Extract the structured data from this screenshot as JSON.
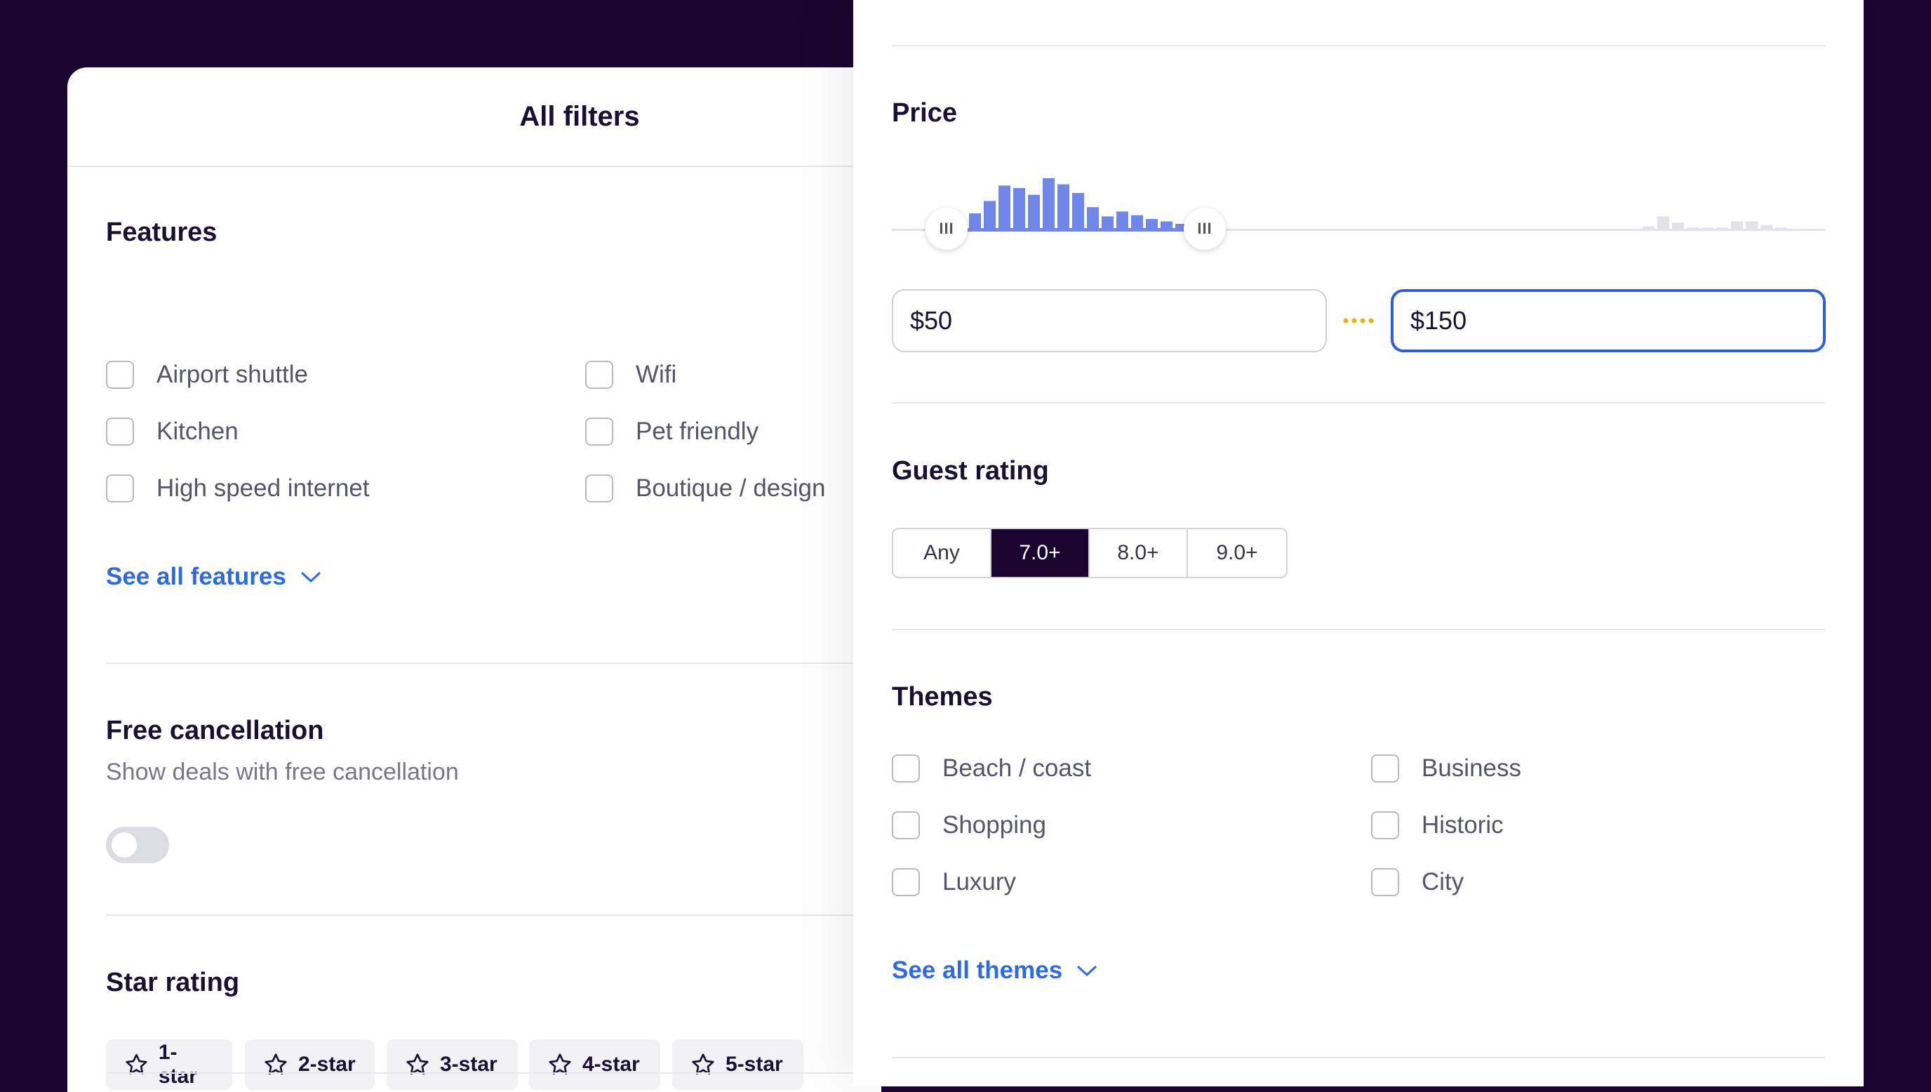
{
  "header": {
    "title": "All filters"
  },
  "features": {
    "heading": "Features",
    "items": [
      "Airport shuttle",
      "Kitchen",
      "High speed internet",
      "Wifi",
      "Pet friendly",
      "Boutique / design"
    ],
    "see_all": "See all features"
  },
  "free_cancellation": {
    "heading": "Free cancellation",
    "subtitle": "Show deals with free cancellation",
    "enabled": false
  },
  "star_rating": {
    "heading": "Star rating",
    "options": [
      "1-star",
      "2-star",
      "3-star",
      "4-star",
      "5-star"
    ]
  },
  "price": {
    "heading": "Price",
    "min_value": "$50",
    "max_value": "$150",
    "histogram": [
      0.25,
      0.45,
      0.7,
      0.66,
      0.55,
      0.82,
      0.72,
      0.58,
      0.35,
      0.2,
      0.28,
      0.22,
      0.16,
      0.12,
      0.08
    ],
    "tail_histogram": [
      0.04,
      0.2,
      0.1,
      0.02,
      0.02,
      0.02,
      0.12,
      0.12,
      0.06,
      0.02
    ],
    "range_fraction": [
      0.06,
      0.33
    ],
    "colors": {
      "active_bar": "#6f86ea",
      "inactive_bar": "#e2e2e8",
      "focus_border": "#2f5fd6",
      "separator": "#e8b400"
    }
  },
  "guest_rating": {
    "heading": "Guest rating",
    "options": [
      "Any",
      "7.0+",
      "8.0+",
      "9.0+"
    ],
    "selected": "7.0+"
  },
  "themes": {
    "heading": "Themes",
    "items": [
      "Beach / coast",
      "Shopping",
      "Luxury",
      "Business",
      "Historic",
      "City"
    ],
    "see_all": "See all themes"
  }
}
